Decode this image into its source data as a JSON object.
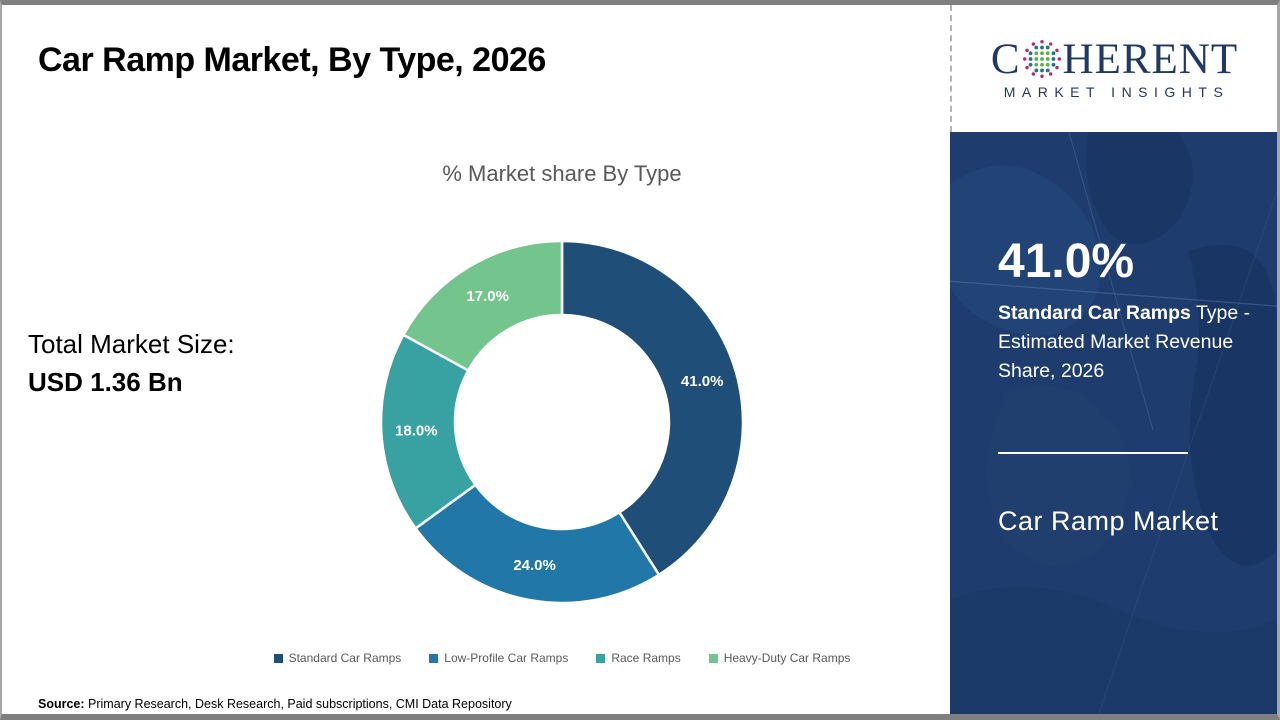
{
  "header": {
    "title": "Car Ramp Market, By Type, 2026"
  },
  "logo": {
    "brand_c": "C",
    "brand_rest": "HERENT",
    "tagline": "MARKET INSIGHTS"
  },
  "main": {
    "total_market_label": "Total Market Size:",
    "total_market_value": "USD 1.36 Bn",
    "source_label": "Source:",
    "source_text": " Primary Research, Desk Research, Paid subscriptions, CMI Data Repository"
  },
  "chart_data": {
    "type": "pie",
    "donut": true,
    "title": "% Market share By Type",
    "categories": [
      "Standard Car Ramps",
      "Low-Profile Car Ramps",
      "Race Ramps",
      "Heavy-Duty Car Ramps"
    ],
    "values": [
      41.0,
      24.0,
      18.0,
      17.0
    ],
    "labels": [
      "41.0%",
      "24.0%",
      "18.0%",
      "17.0%"
    ],
    "colors": [
      "#1F4E79",
      "#2077A8",
      "#38A2A2",
      "#74C48E"
    ],
    "start_angle_deg": 0,
    "direction": "clockwise",
    "legend_position": "bottom"
  },
  "sidebar": {
    "highlight_value": "41.0%",
    "highlight_bold": "Standard Car Ramps",
    "highlight_rest": " Type - Estimated Market Revenue Share, 2026",
    "footer_title": "Car Ramp Market",
    "panel_color": "#1E3C6E",
    "logo_color": "#1F3864"
  }
}
